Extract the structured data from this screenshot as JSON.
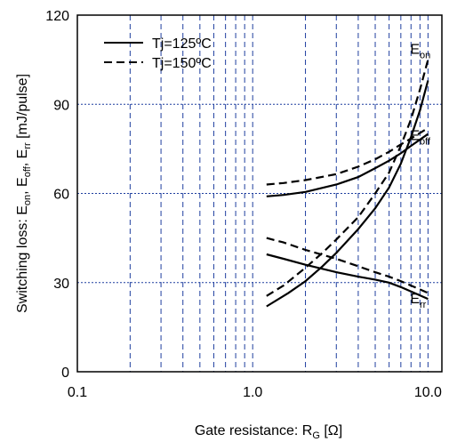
{
  "chart_data": {
    "type": "line",
    "title": "",
    "xlabel": {
      "main": "Gate resistance: R",
      "sub": "G",
      "unit": " [Ω]"
    },
    "ylabel": "Switching loss: E_on, E_off, E_rr [mJ/pulse]",
    "ylabel_parts": [
      {
        "t": "Switching loss: E",
        "sub": false
      },
      {
        "t": "on",
        "sub": true
      },
      {
        "t": ", E",
        "sub": false
      },
      {
        "t": "off",
        "sub": true
      },
      {
        "t": ", E",
        "sub": false
      },
      {
        "t": "rr",
        "sub": true
      },
      {
        "t": " [mJ/pulse]",
        "sub": false
      }
    ],
    "x_scale": "log",
    "xlim": [
      0.1,
      12
    ],
    "ylim": [
      0,
      120
    ],
    "x_ticks": [
      {
        "value": 0.1,
        "label": "0.1"
      },
      {
        "value": 1,
        "label": "1.0"
      },
      {
        "value": 10,
        "label": "10.0"
      }
    ],
    "y_ticks": [
      {
        "value": 0,
        "label": "0"
      },
      {
        "value": 30,
        "label": "30"
      },
      {
        "value": 60,
        "label": "60"
      },
      {
        "value": 90,
        "label": "90"
      },
      {
        "value": 120,
        "label": "120"
      }
    ],
    "grid": true,
    "legend": {
      "position": "top-left",
      "entries": [
        {
          "label": "Tj=125ºC",
          "style": "solid"
        },
        {
          "label": "Tj=150ºC",
          "style": "dashed"
        }
      ]
    },
    "curve_labels": [
      {
        "main": "E",
        "sub": "on",
        "x": 11.5,
        "y": 107
      },
      {
        "main": "E",
        "sub": "off",
        "x": 11.5,
        "y": 78
      },
      {
        "main": "E",
        "sub": "rr",
        "x": 11.5,
        "y": 23
      }
    ],
    "series": [
      {
        "group": "E_on",
        "label": "Tj=125ºC",
        "style": "solid",
        "points": [
          [
            1.2,
            22
          ],
          [
            1.6,
            26.5
          ],
          [
            2,
            30.5
          ],
          [
            2.5,
            35.5
          ],
          [
            3,
            40
          ],
          [
            4,
            48
          ],
          [
            5,
            55
          ],
          [
            6,
            62
          ],
          [
            7,
            70
          ],
          [
            8,
            79
          ],
          [
            9,
            88
          ],
          [
            10,
            98
          ]
        ]
      },
      {
        "group": "E_on",
        "label": "Tj=150ºC",
        "style": "dashed",
        "points": [
          [
            1.2,
            25.5
          ],
          [
            1.5,
            29
          ],
          [
            2,
            35
          ],
          [
            2.5,
            40
          ],
          [
            3,
            44.5
          ],
          [
            4,
            52
          ],
          [
            5,
            60
          ],
          [
            6,
            67
          ],
          [
            7,
            76
          ],
          [
            8,
            85
          ],
          [
            9,
            95
          ],
          [
            10,
            105
          ]
        ]
      },
      {
        "group": "E_off",
        "label": "Tj=125ºC",
        "style": "solid",
        "points": [
          [
            1.2,
            59
          ],
          [
            1.5,
            59.5
          ],
          [
            2,
            60.5
          ],
          [
            3,
            63
          ],
          [
            4,
            65.5
          ],
          [
            5,
            68.5
          ],
          [
            6,
            71
          ],
          [
            7,
            73.5
          ],
          [
            8,
            76
          ],
          [
            10,
            80
          ]
        ]
      },
      {
        "group": "E_off",
        "label": "Tj=150ºC",
        "style": "dashed",
        "points": [
          [
            1.2,
            63
          ],
          [
            1.5,
            63.5
          ],
          [
            2,
            64.5
          ],
          [
            3,
            66.5
          ],
          [
            4,
            69
          ],
          [
            5,
            71.5
          ],
          [
            6,
            74
          ],
          [
            7,
            76.5
          ],
          [
            8,
            78.5
          ],
          [
            10,
            82
          ]
        ]
      },
      {
        "group": "E_rr",
        "label": "Tj=125ºC",
        "style": "solid",
        "points": [
          [
            1.2,
            39.5
          ],
          [
            1.5,
            38
          ],
          [
            2,
            36
          ],
          [
            3,
            33.5
          ],
          [
            4,
            32
          ],
          [
            5,
            31
          ],
          [
            6,
            30
          ],
          [
            7,
            28.5
          ],
          [
            8,
            27
          ],
          [
            10,
            24.5
          ]
        ]
      },
      {
        "group": "E_rr",
        "label": "Tj=150ºC",
        "style": "dashed",
        "points": [
          [
            1.2,
            45
          ],
          [
            1.5,
            43.5
          ],
          [
            2,
            41
          ],
          [
            3,
            38
          ],
          [
            4,
            35.5
          ],
          [
            5,
            33.5
          ],
          [
            6,
            32
          ],
          [
            7,
            30.5
          ],
          [
            8,
            29
          ],
          [
            10,
            26.5
          ]
        ]
      }
    ],
    "colors": {
      "axis": "#000000",
      "grid": "#1f3f9f",
      "line": "#000000"
    }
  }
}
